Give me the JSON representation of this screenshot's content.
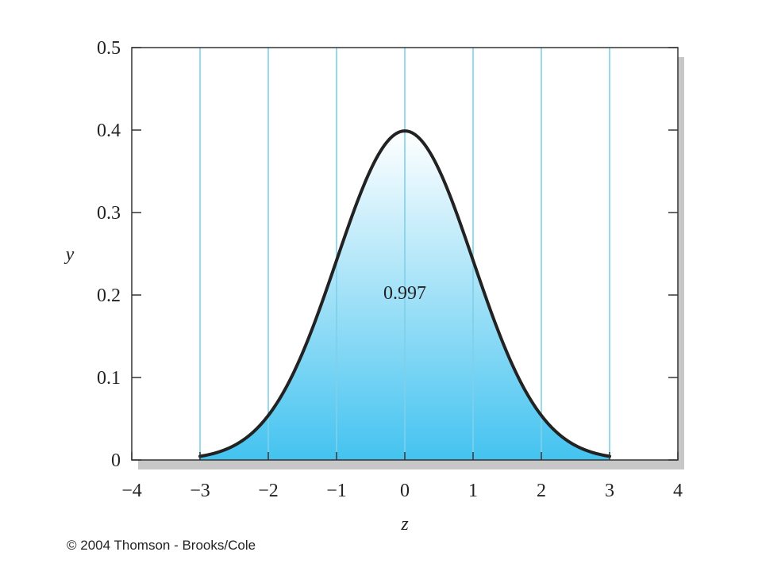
{
  "chart_data": {
    "type": "area",
    "xlabel": "z",
    "ylabel": "y",
    "xlim": [
      -4,
      4
    ],
    "ylim": [
      0,
      0.5
    ],
    "x_ticks": [
      -4,
      -3,
      -2,
      -1,
      0,
      1,
      2,
      3,
      4
    ],
    "x_tick_labels": [
      "−4",
      "−3",
      "−2",
      "−1",
      "0",
      "1",
      "2",
      "3",
      "4"
    ],
    "y_ticks": [
      0,
      0.1,
      0.2,
      0.3,
      0.4,
      0.5
    ],
    "y_tick_labels": [
      "0",
      "0.1",
      "0.2",
      "0.3",
      "0.4",
      "0.5"
    ],
    "vertical_gridlines": [
      -3,
      -2,
      -1,
      0,
      1,
      2,
      3
    ],
    "grid": "vertical lines only",
    "curve": "standard normal density",
    "shaded_interval": [
      -3,
      3
    ],
    "shaded_area_label": "0.997",
    "colors": {
      "shade_top": "#ffffff",
      "shade_bottom": "#44c3f0",
      "gridline": "#7fd0ea",
      "curve": "#222222",
      "shadow": "#c7c7c7"
    }
  },
  "copyright": "© 2004 Thomson - Brooks/Cole"
}
